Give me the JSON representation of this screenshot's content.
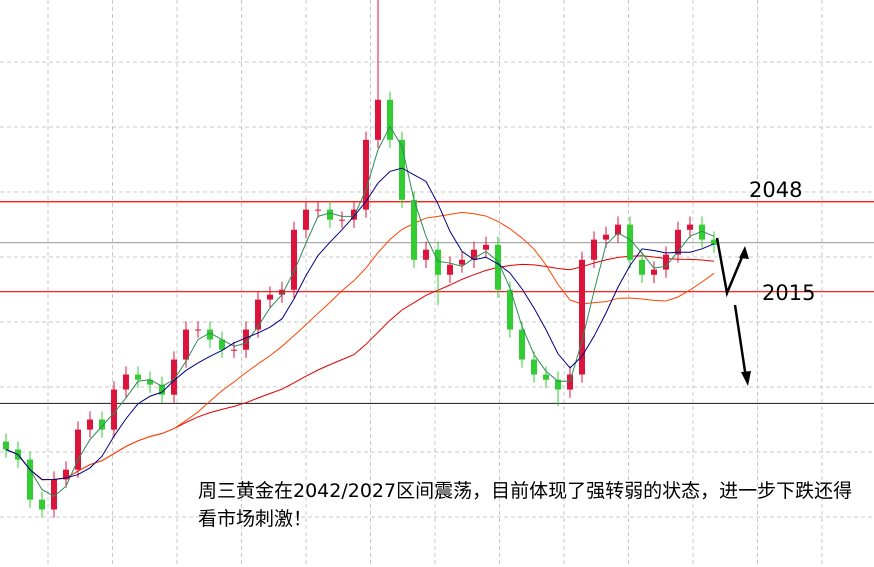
{
  "chart_data": {
    "type": "candlestick",
    "title": "",
    "xlabel": "",
    "ylabel": "",
    "ylim": [
      1914,
      2122
    ],
    "grid": true,
    "colors": {
      "up": "#dc143c",
      "down": "#32cd32",
      "level": "#ff0000",
      "support": "#333333",
      "mid": "#aaaaaa",
      "ma_fast": "#2e8b57",
      "ma_mid": "#000080",
      "ma_slow": "#ff4500",
      "ma_long": "#e00000"
    },
    "open": [
      1960,
      1957.1,
      1953.4,
      1938.7,
      1935.1,
      1946.1,
      1949.7,
      1964.4,
      1968.1,
      1964.4,
      1979.1,
      1984.6,
      1982.7,
      1980.9,
      1977.2,
      1990.1,
      2001.1,
      2001.1,
      1997.4,
      1993.7,
      1993.7,
      2001.1,
      2012.1,
      2013.9,
      2015.7,
      2037.7,
      2045.1,
      2045.1,
      2041.4,
      2041.4,
      2045.1,
      2070.7,
      2085.4,
      2070.7,
      2048.7,
      2026.7,
      2030.4,
      2021.2,
      2024.9,
      2026.7,
      2030.4,
      2032.2,
      2015.7,
      2001.1,
      1990.1,
      1984.6,
      1982.7,
      1979.1,
      1984.6,
      2026.7,
      2034.1,
      2035.9,
      2039.6,
      2026.7,
      2021.2,
      2023.1,
      2028.6,
      2037.7,
      2039.6,
      2034.1
    ],
    "close": [
      1957.1,
      1953.4,
      1938.7,
      1935.1,
      1946.1,
      1949.7,
      1964.4,
      1968.1,
      1964.4,
      1979.1,
      1984.6,
      1982.7,
      1980.9,
      1977.2,
      1990.1,
      2001.1,
      2001.1,
      1997.4,
      1993.7,
      1993.7,
      2001.1,
      2012.1,
      2013.9,
      2015.7,
      2037.7,
      2045.1,
      2045.1,
      2041.4,
      2041.4,
      2045.1,
      2070.7,
      2085.4,
      2070.7,
      2048.7,
      2026.7,
      2030.4,
      2021.2,
      2024.9,
      2026.7,
      2030.4,
      2032.2,
      2015.7,
      2001.1,
      1990.1,
      1984.6,
      1982.7,
      1979.1,
      1984.6,
      2026.7,
      2034.1,
      2035.9,
      2039.6,
      2026.7,
      2021.2,
      2023.1,
      2028.6,
      2037.7,
      2039.6,
      2034.1,
      2032.2
    ],
    "high": [
      1963,
      1960.1,
      1956.4,
      1941.7,
      1949.1,
      1952.7,
      1967.4,
      1971.1,
      1971.1,
      1982.1,
      1987.6,
      1987.6,
      1985.7,
      1983.9,
      1993.1,
      2004.1,
      2004.1,
      2004.1,
      2000.4,
      1996.7,
      2004.1,
      2015.1,
      2016.9,
      2018.7,
      2040.7,
      2048.1,
      2048.1,
      2048.1,
      2044.4,
      2048.1,
      2073.7,
      2122,
      2088.4,
      2073.7,
      2051.7,
      2033.4,
      2033.4,
      2027.9,
      2029.7,
      2033.4,
      2035.2,
      2035.2,
      2018.7,
      2004.1,
      1993.1,
      1987.6,
      1985.7,
      1987.6,
      2029.7,
      2037.1,
      2038.9,
      2042.6,
      2042.6,
      2029.7,
      2026.1,
      2031.6,
      2040.7,
      2042.6,
      2042.6,
      2037.1
    ],
    "low": [
      1954.1,
      1950.4,
      1935.7,
      1932.1,
      1932.1,
      1943.1,
      1946.7,
      1961.4,
      1961.4,
      1961.4,
      1976.1,
      1979.7,
      1977.9,
      1974.2,
      1974.2,
      1987.1,
      1998.1,
      1994.4,
      1990.7,
      1990.7,
      1990.7,
      1998.1,
      2009.1,
      2010.9,
      2012.7,
      2034.7,
      2042.1,
      2038.4,
      2038.4,
      2038.4,
      2042.1,
      2067.7,
      2067.7,
      2045.7,
      2023.7,
      2023.7,
      2010,
      2018.2,
      2021.9,
      2023.7,
      2027.4,
      2012.7,
      1998.1,
      1987.1,
      1981.6,
      1979.7,
      1973,
      1976.1,
      1981.6,
      2023.7,
      2031.1,
      2032.9,
      2023.7,
      2018.2,
      2018.2,
      2020.1,
      2025.6,
      2034.7,
      2031.1,
      2029.2
    ],
    "levels": [
      {
        "value": 2048,
        "label": "2048",
        "style": "level"
      },
      {
        "value": 2033,
        "label": "",
        "style": "mid"
      },
      {
        "value": 2015,
        "label": "2015",
        "style": "level"
      },
      {
        "value": 1974,
        "label": "",
        "style": "support"
      }
    ],
    "annotation": "周三黄金在2042/2027区间震荡，目前体现了强转弱的状态，进一步下跌还得看市场刺激！"
  }
}
